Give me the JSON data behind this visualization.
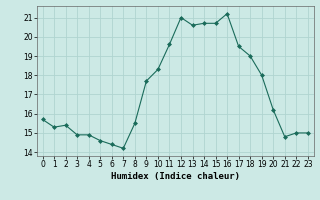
{
  "x": [
    0,
    1,
    2,
    3,
    4,
    5,
    6,
    7,
    8,
    9,
    10,
    11,
    12,
    13,
    14,
    15,
    16,
    17,
    18,
    19,
    20,
    21,
    22,
    23
  ],
  "y": [
    15.7,
    15.3,
    15.4,
    14.9,
    14.9,
    14.6,
    14.4,
    14.2,
    15.5,
    17.7,
    18.3,
    19.6,
    21.0,
    20.6,
    20.7,
    20.7,
    21.2,
    19.5,
    19.0,
    18.0,
    16.2,
    14.8,
    15.0,
    15.0
  ],
  "line_color": "#1a6b5a",
  "marker": "D",
  "marker_size": 2.0,
  "bg_color": "#cce9e5",
  "grid_color": "#b0d4d0",
  "xlabel": "Humidex (Indice chaleur)",
  "xlim": [
    -0.5,
    23.5
  ],
  "ylim": [
    13.8,
    21.6
  ],
  "yticks": [
    14,
    15,
    16,
    17,
    18,
    19,
    20,
    21
  ],
  "xticks": [
    0,
    1,
    2,
    3,
    4,
    5,
    6,
    7,
    8,
    9,
    10,
    11,
    12,
    13,
    14,
    15,
    16,
    17,
    18,
    19,
    20,
    21,
    22,
    23
  ],
  "tick_fontsize": 5.5,
  "xlabel_fontsize": 6.5
}
